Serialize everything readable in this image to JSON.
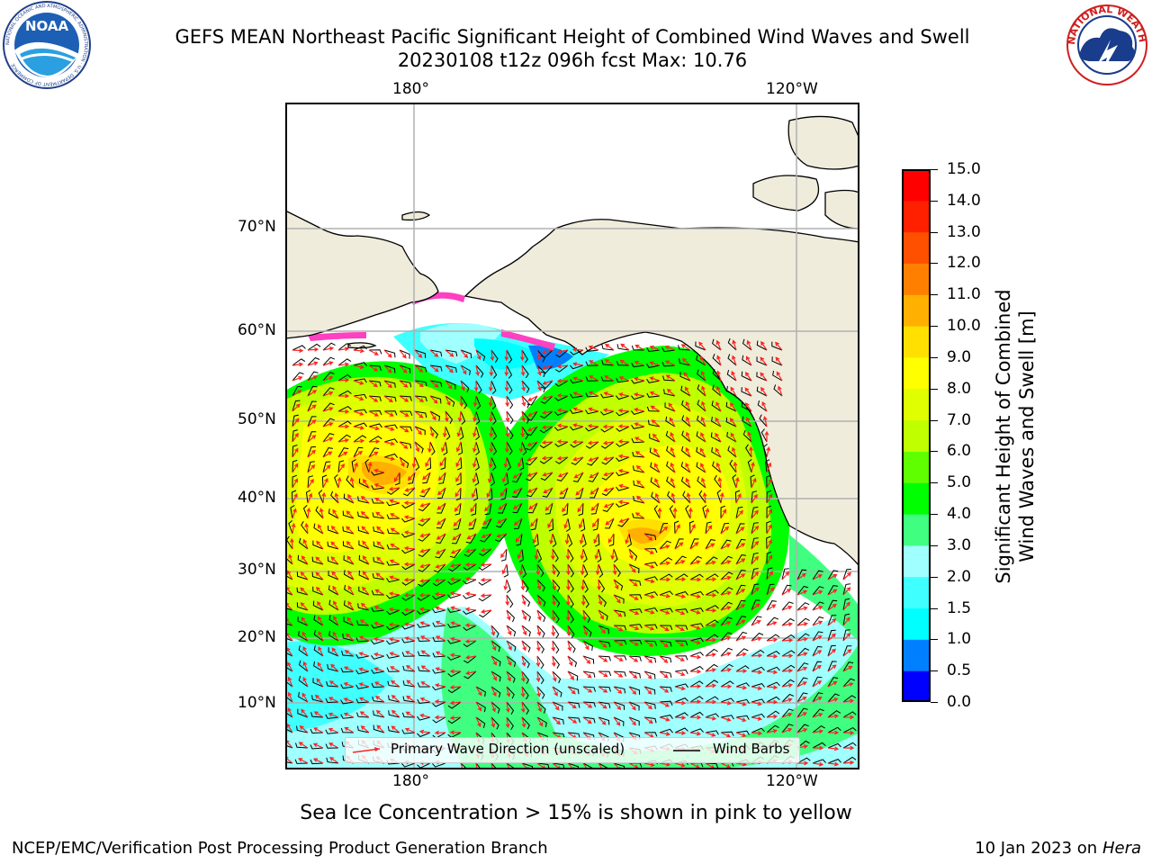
{
  "title": {
    "line1": "GEFS MEAN Northeast Pacific Significant Height of Combined Wind Waves and Swell",
    "line2": "20230108 t12z 096h fcst   Max: 10.76"
  },
  "logos": {
    "noaa_text": "NOAA",
    "noaa_ring": "NATIONAL OCEANIC AND ATMOSPHERIC ADMINISTRATION · U.S. DEPARTMENT OF COMMERCE",
    "nws_ring": "NATIONAL WEATHER SERVICE"
  },
  "map": {
    "lon_labels_top": [
      "180°",
      "120°W"
    ],
    "lon_labels_bottom": [
      "180°",
      "120°W"
    ],
    "lat_labels": [
      "70°N",
      "60°N",
      "50°N",
      "40°N",
      "30°N",
      "20°N",
      "10°N"
    ],
    "colors": {
      "land": "#efecdc",
      "grid": "#b0b0b0",
      "arrow": "#ff2020",
      "barb": "#000000"
    }
  },
  "legend": {
    "wave_direction": "Primary Wave Direction (unscaled)",
    "wind_barbs": "Wind Barbs"
  },
  "colorbar": {
    "label_line1": "Significant Height of Combined",
    "label_line2": "Wind Waves and Swell [m]",
    "levels": [
      "0.0",
      "0.5",
      "1.0",
      "1.5",
      "2.0",
      "3.0",
      "4.0",
      "5.0",
      "6.0",
      "7.0",
      "8.0",
      "9.0",
      "10.0",
      "11.0",
      "12.0",
      "13.0",
      "14.0",
      "15.0"
    ],
    "colors": [
      "#0000ff",
      "#0080ff",
      "#00ffff",
      "#40ffff",
      "#a0ffff",
      "#40ff80",
      "#00ff00",
      "#60ff00",
      "#c0ff00",
      "#e0ff00",
      "#ffff00",
      "#ffe000",
      "#ffb000",
      "#ff8000",
      "#ff5000",
      "#ff2000",
      "#ff0000"
    ]
  },
  "note": "Sea Ice Concentration > 15% is shown in pink to yellow",
  "footer": {
    "left": "NCEP/EMC/Verification Post Processing Product Generation Branch",
    "right_date": "10 Jan 2023 on ",
    "right_machine": "Hera"
  }
}
